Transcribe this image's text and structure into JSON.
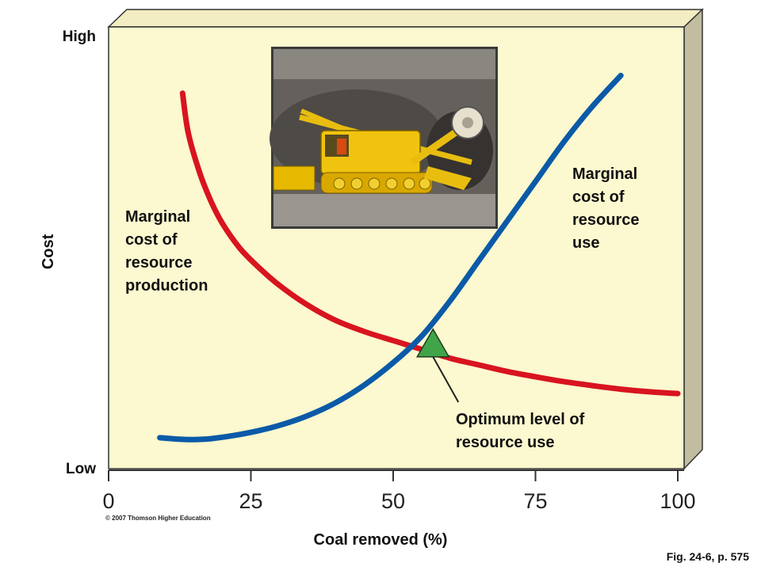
{
  "chart_data": {
    "type": "line",
    "xlabel": "Coal removed (%)",
    "ylabel": "Cost",
    "y_high_label": "High",
    "y_low_label": "Low",
    "xlim": [
      0,
      100
    ],
    "ylim": [
      0,
      100
    ],
    "x_ticks": [
      0,
      25,
      50,
      75,
      100
    ],
    "x_tick_labels": [
      "0",
      "25",
      "50",
      "75",
      "100"
    ],
    "grid": false,
    "series": [
      {
        "name": "Marginal cost of resource production",
        "label_lines": [
          "Marginal",
          "cost of",
          "resource",
          "production"
        ],
        "color": "#d8141f",
        "x": [
          13,
          14,
          16,
          18,
          20,
          23,
          26,
          30,
          35,
          40,
          45,
          50,
          55,
          60,
          65,
          70,
          75,
          80,
          85,
          90,
          95,
          100
        ],
        "y": [
          85,
          76,
          67,
          60.5,
          55.5,
          50,
          46,
          41.5,
          37,
          33.5,
          31,
          29,
          27,
          25,
          23.5,
          22,
          20.8,
          19.7,
          18.8,
          18,
          17.4,
          17
        ]
      },
      {
        "name": "Marginal cost of resource use",
        "label_lines": [
          "Marginal",
          "cost of",
          "resource",
          "use"
        ],
        "color": "#0b5aa8",
        "x": [
          9,
          12,
          15,
          18,
          22,
          26,
          30,
          35,
          40,
          45,
          50,
          55,
          60,
          65,
          70,
          75,
          80,
          85,
          90
        ],
        "y": [
          7,
          6.7,
          6.6,
          6.8,
          7.5,
          8.5,
          9.8,
          12,
          15,
          19,
          24,
          30,
          38,
          47,
          56,
          65,
          74,
          82,
          89
        ]
      }
    ],
    "annotation": {
      "label_lines": [
        "Optimum level of",
        "resource use"
      ],
      "x": 57,
      "y": 28
    },
    "copyright": "© 2007 Thomson Higher Education",
    "figure_ref": "Fig. 24-6, p. 575"
  },
  "colors": {
    "panel_face": "#fcf8cf",
    "panel_side": "#c2bca0",
    "marker": "#3fa548"
  },
  "illustration_icon": "coal-mining-machine-icon"
}
